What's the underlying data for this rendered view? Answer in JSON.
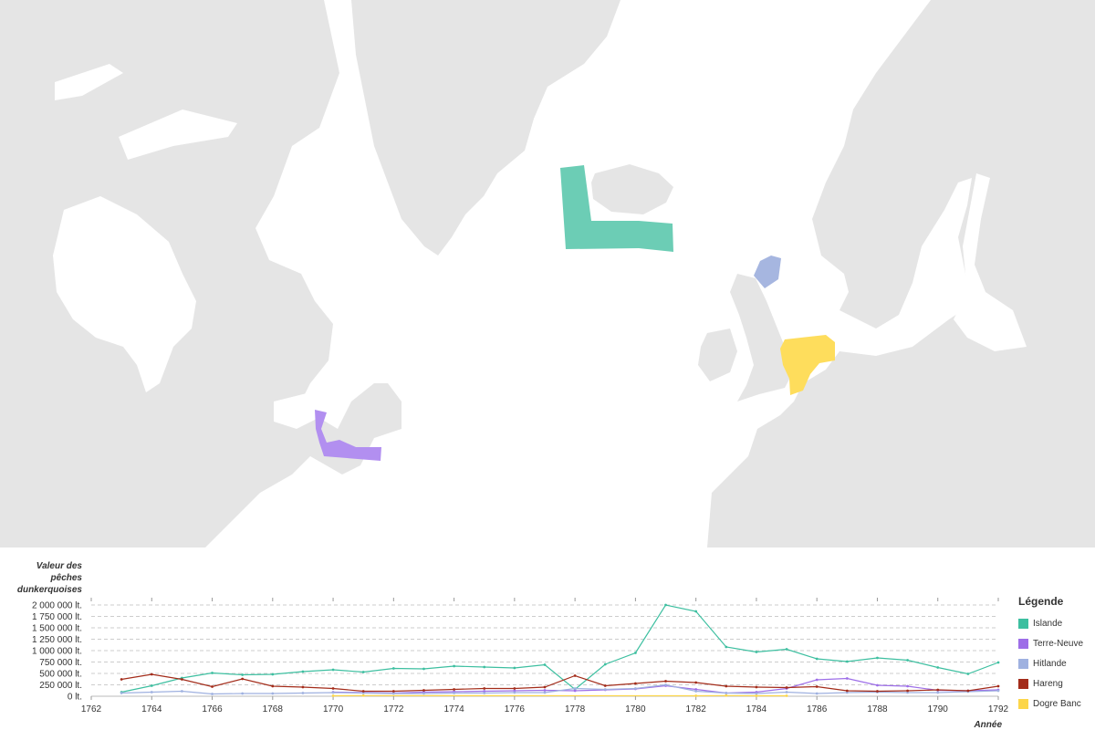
{
  "chart_data": {
    "type": "line",
    "ylabel": "Valeur des pêches dunkerquoises",
    "xlabel": "Année",
    "xlim": [
      1762,
      1792
    ],
    "ylim": [
      0,
      2100000
    ],
    "x_ticks": [
      1762,
      1764,
      1766,
      1768,
      1770,
      1772,
      1774,
      1776,
      1778,
      1780,
      1782,
      1784,
      1786,
      1788,
      1790,
      1792
    ],
    "y_ticks": [
      {
        "value": 0,
        "label": "0 lt."
      },
      {
        "value": 250000,
        "label": "250 000 lt."
      },
      {
        "value": 500000,
        "label": "500 000 lt."
      },
      {
        "value": 750000,
        "label": "750 000 lt."
      },
      {
        "value": 1000000,
        "label": "1 000 000 lt."
      },
      {
        "value": 1250000,
        "label": "1 250 000 lt."
      },
      {
        "value": 1500000,
        "label": "1 500 000 lt."
      },
      {
        "value": 1750000,
        "label": "1 750 000 lt."
      },
      {
        "value": 2000000,
        "label": "2 000 000 lt."
      }
    ],
    "grid": true,
    "legend_title": "Légende",
    "legend_position": "right",
    "series": [
      {
        "name": "Islande",
        "color": "#3dbfa0",
        "x": [
          1763,
          1764,
          1765,
          1766,
          1767,
          1768,
          1769,
          1770,
          1771,
          1772,
          1773,
          1774,
          1775,
          1776,
          1777,
          1778,
          1779,
          1780,
          1781,
          1782,
          1783,
          1784,
          1785,
          1786,
          1787,
          1788,
          1789,
          1790,
          1791,
          1792
        ],
        "values": [
          90000,
          230000,
          400000,
          510000,
          470000,
          480000,
          540000,
          580000,
          530000,
          610000,
          600000,
          660000,
          640000,
          620000,
          690000,
          150000,
          700000,
          950000,
          2000000,
          1860000,
          1080000,
          970000,
          1030000,
          820000,
          760000,
          840000,
          790000,
          630000,
          490000,
          740000
        ]
      },
      {
        "name": "Terre-Neuve",
        "color": "#9d6ee8",
        "x": [
          1770,
          1771,
          1772,
          1773,
          1774,
          1775,
          1776,
          1777,
          1778,
          1779,
          1780,
          1781,
          1782,
          1783,
          1784,
          1785,
          1786,
          1787,
          1788,
          1789,
          1790,
          1791,
          1792
        ],
        "values": [
          90000,
          80000,
          70000,
          90000,
          100000,
          110000,
          120000,
          130000,
          120000,
          140000,
          160000,
          230000,
          150000,
          70000,
          90000,
          170000,
          360000,
          390000,
          240000,
          220000,
          130000,
          120000,
          140000
        ]
      },
      {
        "name": "Hitlande",
        "color": "#9fb1e0",
        "x": [
          1763,
          1764,
          1765,
          1766,
          1767,
          1768,
          1769,
          1770,
          1771,
          1772,
          1773,
          1774,
          1775,
          1776,
          1777,
          1778,
          1779,
          1780,
          1781,
          1782,
          1783,
          1784,
          1785,
          1786,
          1787,
          1788,
          1789,
          1790,
          1791,
          1792
        ],
        "values": [
          70000,
          90000,
          110000,
          50000,
          60000,
          60000,
          70000,
          80000,
          70000,
          60000,
          60000,
          70000,
          70000,
          80000,
          80000,
          170000,
          150000,
          170000,
          250000,
          110000,
          70000,
          60000,
          90000,
          60000,
          80000,
          90000,
          80000,
          80000,
          100000,
          120000
        ]
      },
      {
        "name": "Hareng",
        "color": "#a32c1a",
        "x": [
          1763,
          1764,
          1765,
          1766,
          1767,
          1768,
          1769,
          1770,
          1771,
          1772,
          1773,
          1774,
          1775,
          1776,
          1777,
          1778,
          1779,
          1780,
          1781,
          1782,
          1783,
          1784,
          1785,
          1786,
          1787,
          1788,
          1789,
          1790,
          1791,
          1792
        ],
        "values": [
          370000,
          480000,
          370000,
          210000,
          380000,
          220000,
          200000,
          170000,
          110000,
          110000,
          130000,
          150000,
          170000,
          170000,
          200000,
          450000,
          230000,
          280000,
          330000,
          300000,
          220000,
          200000,
          190000,
          210000,
          120000,
          110000,
          120000,
          140000,
          120000,
          220000
        ]
      },
      {
        "name": "Dogre Banc",
        "color": "#fcd64a",
        "x": [
          1770,
          1771,
          1782,
          1783,
          1784,
          1785
        ],
        "values": [
          10000,
          15000,
          10000,
          15000,
          10000,
          10000
        ]
      }
    ]
  },
  "map": {
    "colors": {
      "land": "#e5e5e5",
      "sea": "#ffffff"
    },
    "zones": [
      {
        "name": "Islande",
        "color": "#3dbfa0"
      },
      {
        "name": "Terre-Neuve",
        "color": "#9d6ee8"
      },
      {
        "name": "Hitlande",
        "color": "#9fb1e0"
      },
      {
        "name": "Dogre Banc",
        "color": "#fcd64a"
      }
    ]
  }
}
